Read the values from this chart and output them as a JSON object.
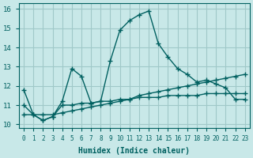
{
  "xlabel": "Humidex (Indice chaleur)",
  "ylabel": "",
  "background_color": "#c8e8e8",
  "grid_color": "#a0c8c8",
  "line_color": "#006060",
  "xlim": [
    -0.5,
    23.5
  ],
  "ylim": [
    9.8,
    16.3
  ],
  "yticks": [
    10,
    11,
    12,
    13,
    14,
    15,
    16
  ],
  "xticks": [
    0,
    1,
    2,
    3,
    4,
    5,
    6,
    7,
    8,
    9,
    10,
    11,
    12,
    13,
    14,
    15,
    16,
    17,
    18,
    19,
    20,
    21,
    22,
    23
  ],
  "line1_x": [
    0,
    1,
    2,
    3,
    4,
    5,
    6,
    7,
    8,
    9,
    10,
    11,
    12,
    13,
    14,
    15,
    16,
    17,
    18,
    19,
    20,
    21,
    22,
    23
  ],
  "line1_y": [
    11.8,
    10.5,
    10.2,
    10.4,
    11.2,
    12.9,
    12.5,
    11.1,
    11.2,
    13.3,
    14.9,
    15.4,
    15.7,
    15.9,
    14.2,
    13.5,
    12.9,
    12.6,
    12.2,
    12.3,
    12.1,
    11.9,
    11.3,
    11.3
  ],
  "line2_x": [
    0,
    1,
    2,
    3,
    4,
    5,
    6,
    7,
    8,
    9,
    10,
    11,
    12,
    13,
    14,
    15,
    16,
    17,
    18,
    19,
    20,
    21,
    22,
    23
  ],
  "line2_y": [
    11.0,
    10.5,
    10.2,
    10.4,
    11.0,
    11.0,
    11.1,
    11.1,
    11.2,
    11.2,
    11.3,
    11.3,
    11.4,
    11.4,
    11.4,
    11.5,
    11.5,
    11.5,
    11.5,
    11.6,
    11.6,
    11.6,
    11.6,
    11.6
  ],
  "line3_x": [
    0,
    1,
    2,
    3,
    4,
    5,
    6,
    7,
    8,
    9,
    10,
    11,
    12,
    13,
    14,
    15,
    16,
    17,
    18,
    19,
    20,
    21,
    22,
    23
  ],
  "line3_y": [
    10.5,
    10.5,
    10.5,
    10.5,
    10.6,
    10.7,
    10.8,
    10.9,
    11.0,
    11.1,
    11.2,
    11.3,
    11.5,
    11.6,
    11.7,
    11.8,
    11.9,
    12.0,
    12.1,
    12.2,
    12.3,
    12.4,
    12.5,
    12.6
  ]
}
